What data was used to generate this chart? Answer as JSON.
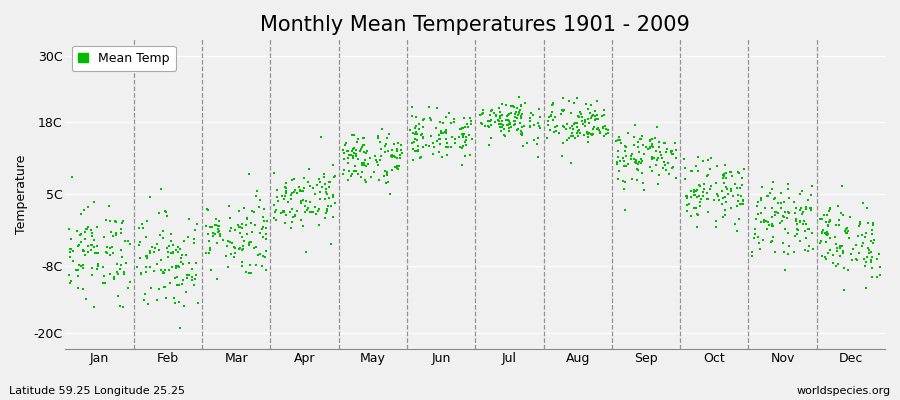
{
  "title": "Monthly Mean Temperatures 1901 - 2009",
  "ylabel": "Temperature",
  "yticks": [
    -20,
    -8,
    5,
    18,
    30
  ],
  "ytick_labels": [
    "-20C",
    "-8C",
    "5C",
    "18C",
    "30C"
  ],
  "ylim": [
    -23,
    33
  ],
  "xlim": [
    0,
    12
  ],
  "months": [
    "Jan",
    "Feb",
    "Mar",
    "Apr",
    "May",
    "Jun",
    "Jul",
    "Aug",
    "Sep",
    "Oct",
    "Nov",
    "Dec"
  ],
  "month_means": [
    -5.5,
    -7.0,
    -2.5,
    4.5,
    11.5,
    15.5,
    18.5,
    17.5,
    11.5,
    5.5,
    0.5,
    -3.5
  ],
  "month_stds": [
    4.2,
    4.5,
    3.5,
    2.8,
    2.5,
    2.2,
    2.0,
    2.2,
    2.5,
    2.8,
    3.0,
    3.5
  ],
  "n_years": 109,
  "dot_color": "#00bb00",
  "dot_size": 3,
  "bg_color": "#f0f0f0",
  "plot_bg_color": "#f0f0f0",
  "legend_label": "Mean Temp",
  "bottom_left": "Latitude 59.25 Longitude 25.25",
  "bottom_right": "worldspecies.org",
  "title_fontsize": 15,
  "ylabel_fontsize": 9,
  "tick_fontsize": 9,
  "annot_fontsize": 8
}
